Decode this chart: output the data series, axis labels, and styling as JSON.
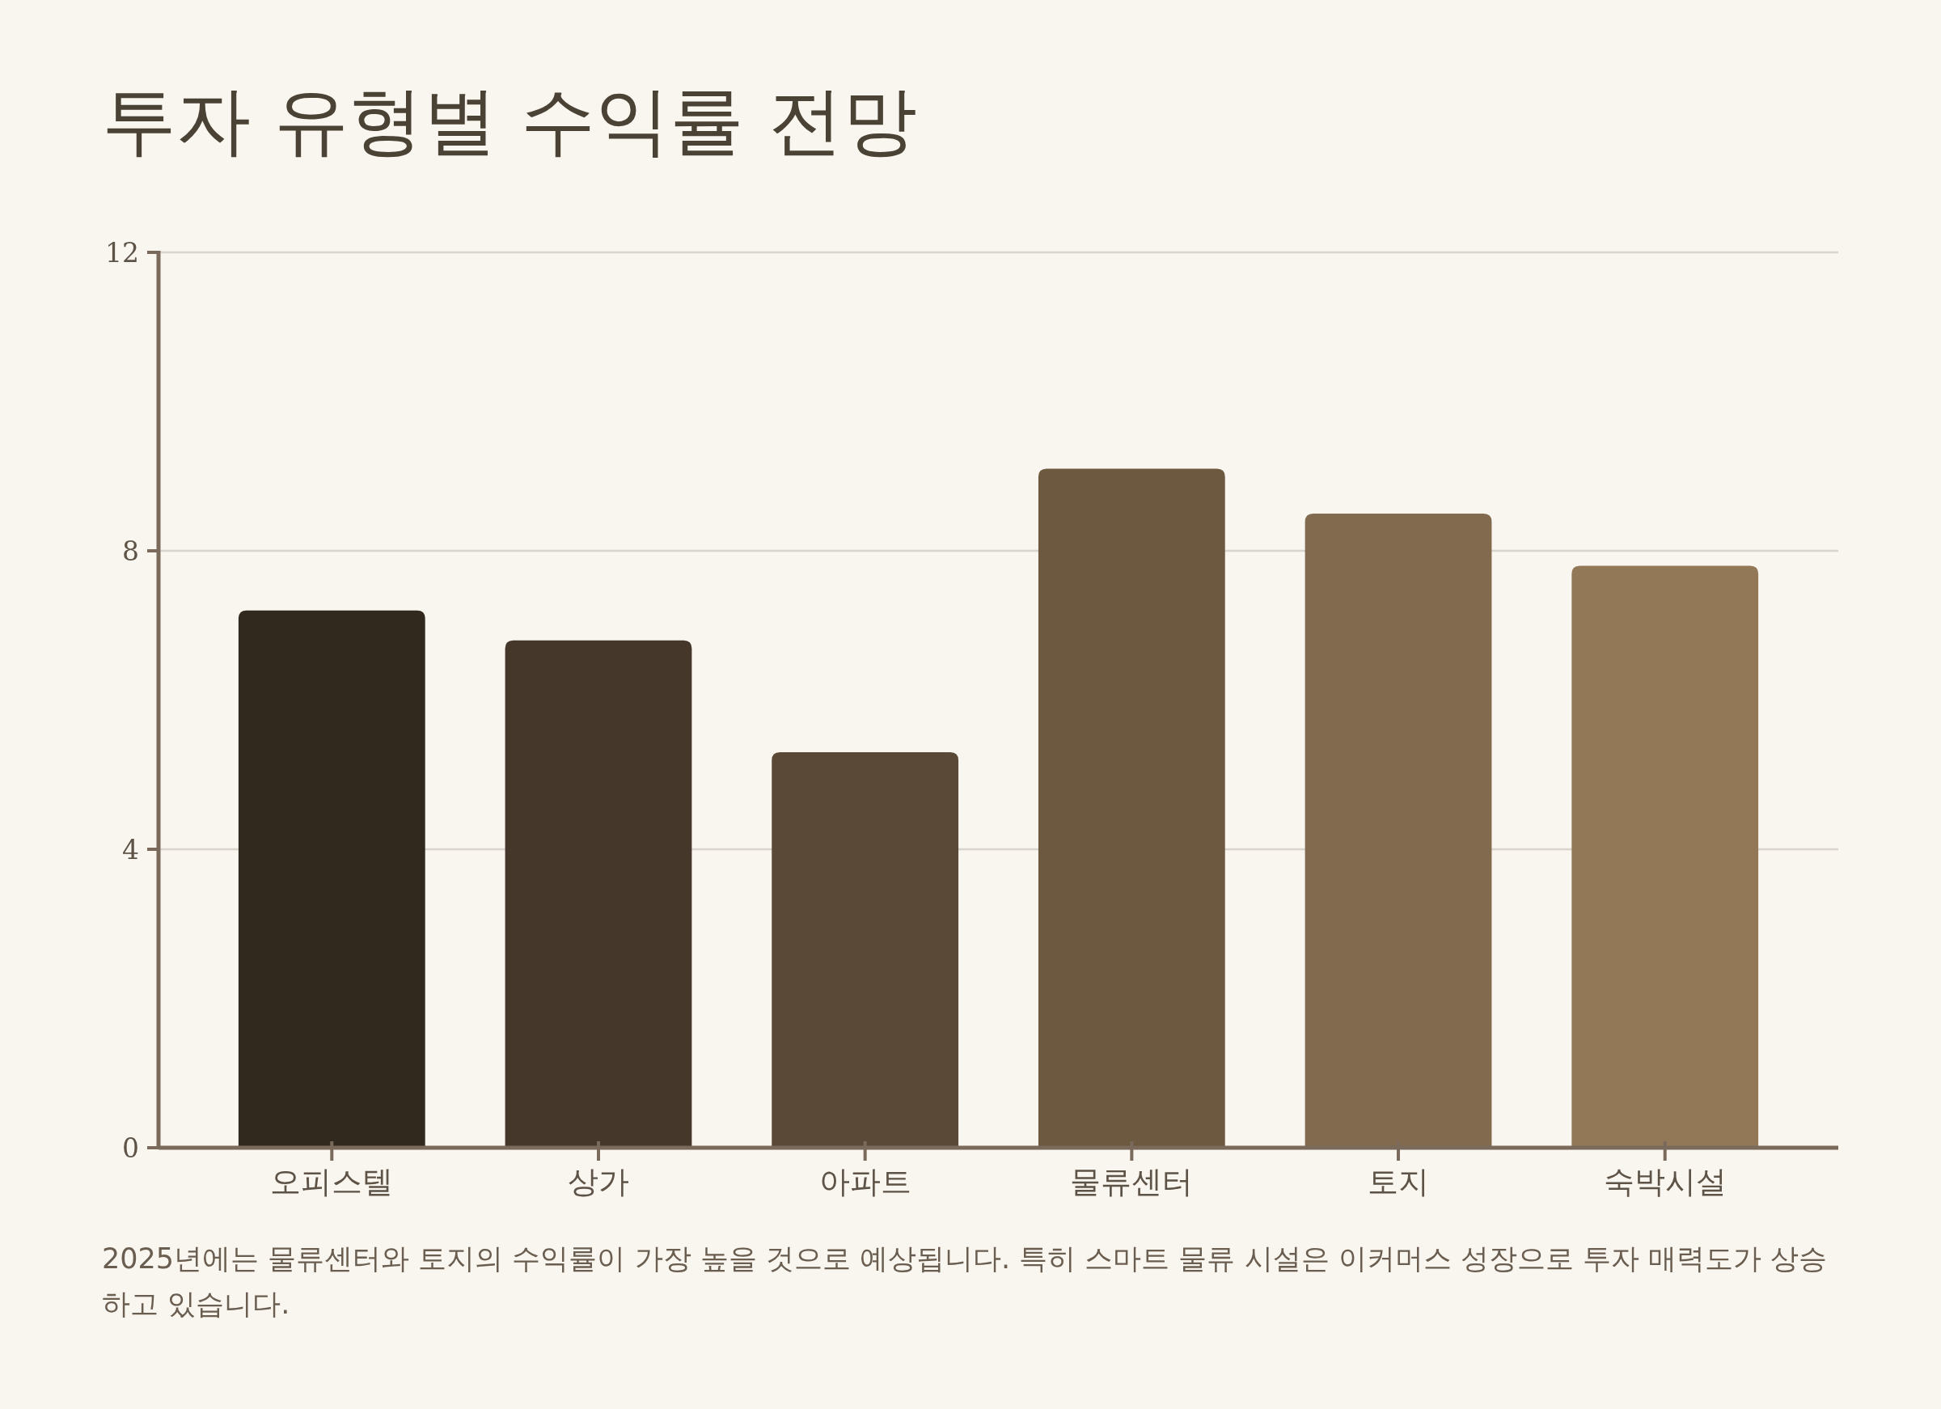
{
  "chart_data": {
    "type": "bar",
    "title": "투자 유형별 수익률 전망",
    "categories": [
      "오피스텔",
      "상가",
      "아파트",
      "물류센터",
      "토지",
      "숙박시설"
    ],
    "values": [
      7.2,
      6.8,
      5.3,
      9.1,
      8.5,
      7.8
    ],
    "colors": [
      "#31291e",
      "#45372a",
      "#5a4936",
      "#6d5940",
      "#816a4d",
      "#937858"
    ],
    "ylim": [
      0,
      12
    ],
    "yticks": [
      0,
      4,
      8,
      12
    ],
    "grid": "y",
    "annotations": [
      "2025년에는 물류센터와 토지의 수익률이 가장 높을 것으로 예상됩니다. 특히 스마트 물류 시설은 이커머스 성장으로 투자 매력도가 상승하고 있습니다."
    ]
  }
}
